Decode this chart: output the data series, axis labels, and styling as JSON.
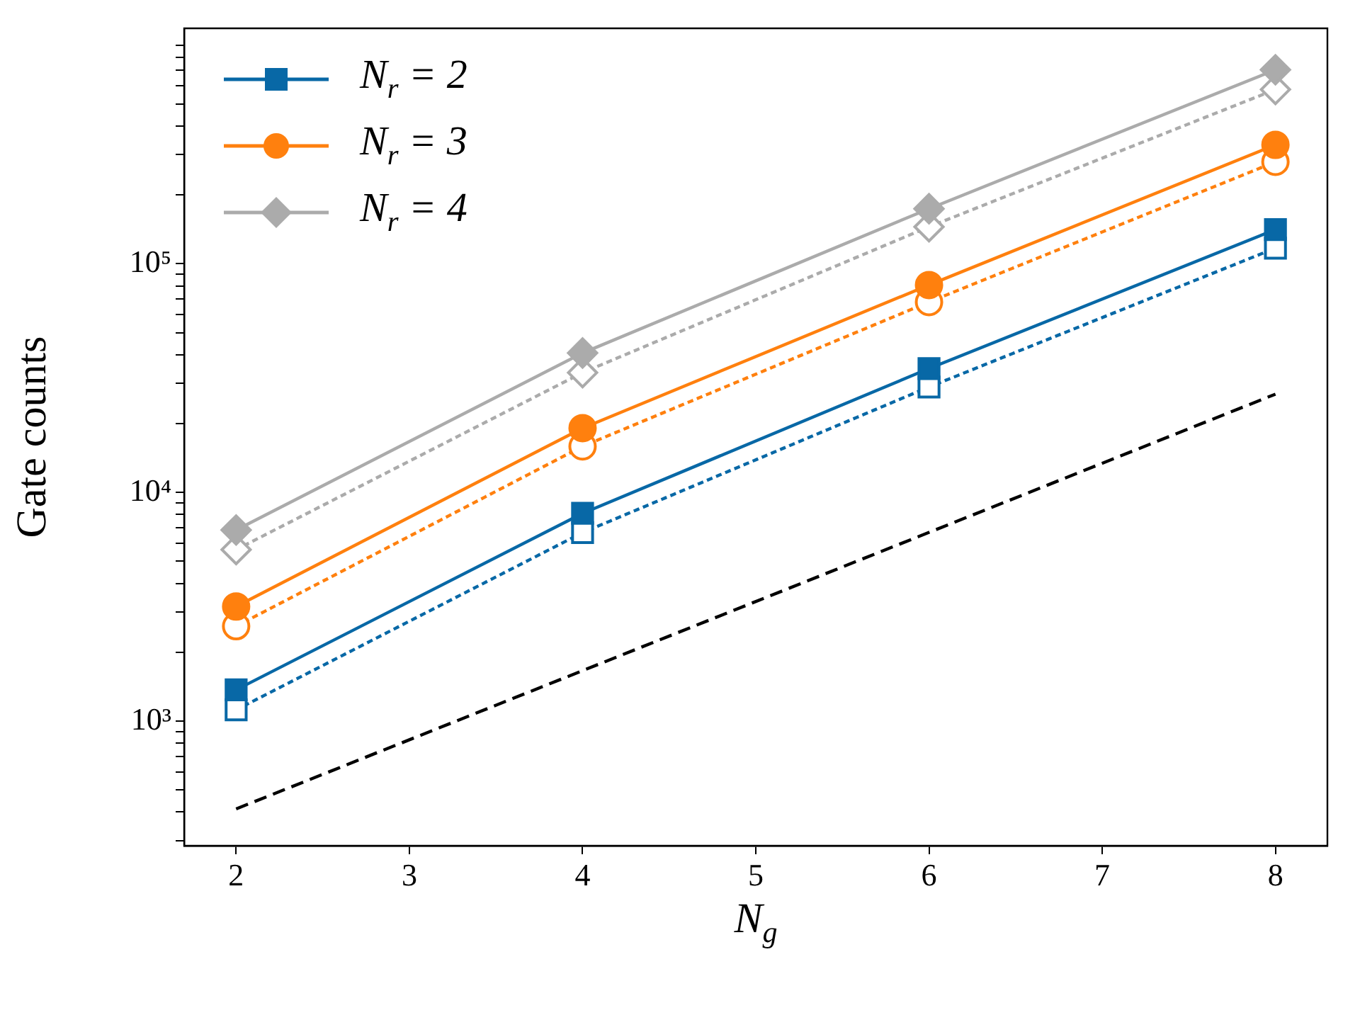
{
  "chart_data": {
    "type": "line",
    "xlabel": "N$_{g}$",
    "ylabel": "Gate counts",
    "log": "y",
    "grid": false,
    "legend": "top left",
    "xlim": [
      1.7,
      8.3
    ],
    "xticks": [
      2,
      3,
      4,
      5,
      6,
      7,
      8
    ],
    "ylim": [
      285,
      1070000
    ],
    "yticks": [
      {
        "value": 300,
        "label": null
      },
      {
        "value": 400,
        "label": null
      },
      {
        "value": 500,
        "label": null
      },
      {
        "value": 600,
        "label": null
      },
      {
        "value": 700,
        "label": null
      },
      {
        "value": 800,
        "label": null
      },
      {
        "value": 900,
        "label": null
      },
      {
        "value": 1000,
        "label": "10³"
      },
      {
        "value": 2000,
        "label": null
      },
      {
        "value": 3000,
        "label": null
      },
      {
        "value": 4000,
        "label": null
      },
      {
        "value": 5000,
        "label": null
      },
      {
        "value": 6000,
        "label": null
      },
      {
        "value": 7000,
        "label": null
      },
      {
        "value": 8000,
        "label": null
      },
      {
        "value": 9000,
        "label": null
      },
      {
        "value": 10000,
        "label": "10⁴"
      },
      {
        "value": 20000,
        "label": null
      },
      {
        "value": 30000,
        "label": null
      },
      {
        "value": 40000,
        "label": null
      },
      {
        "value": 50000,
        "label": null
      },
      {
        "value": 60000,
        "label": null
      },
      {
        "value": 70000,
        "label": null
      },
      {
        "value": 80000,
        "label": null
      },
      {
        "value": 90000,
        "label": null
      },
      {
        "value": 100000,
        "label": "10⁵"
      },
      {
        "value": 200000,
        "label": null
      },
      {
        "value": 300000,
        "label": null
      },
      {
        "value": 400000,
        "label": null
      },
      {
        "value": 500000,
        "label": null
      },
      {
        "value": 600000,
        "label": null
      },
      {
        "value": 700000,
        "label": null
      },
      {
        "value": 800000,
        "label": null
      },
      {
        "value": 900000,
        "label": null
      }
    ],
    "series": [
      {
        "name": "N$_{r}$ = 2",
        "color": "#0868a6",
        "marker": "square",
        "line_style": "solid",
        "x": [
          2,
          4,
          6,
          8
        ],
        "values": [
          1370,
          8100,
          34800,
          141000
        ]
      },
      {
        "name": "N$_{r}$ = 3",
        "color": "#ff800e",
        "marker": "circle",
        "line_style": "solid",
        "x": [
          2,
          4,
          6,
          8
        ],
        "values": [
          3170,
          19100,
          80700,
          331000
        ]
      },
      {
        "name": "N$_{r}$ = 4",
        "color": "#ababab",
        "marker": "diamond",
        "line_style": "solid",
        "x": [
          2,
          4,
          6,
          8
        ],
        "values": [
          6850,
          40700,
          174000,
          705000
        ]
      },
      {
        "color": "#0868a6",
        "marker": "square",
        "line_style": "dotted",
        "x": [
          2,
          4,
          6,
          8
        ],
        "values": [
          1120,
          6670,
          28900,
          117000
        ]
      },
      {
        "color": "#ff800e",
        "marker": "circle",
        "line_style": "dotted",
        "x": [
          2,
          4,
          6,
          8
        ],
        "values": [
          2600,
          15900,
          68000,
          279000
        ]
      },
      {
        "color": "#ababab",
        "marker": "diamond",
        "line_style": "dotted",
        "x": [
          2,
          4,
          6,
          8
        ],
        "values": [
          5620,
          33400,
          145000,
          578000
        ]
      },
      {
        "color": "#000000",
        "marker": "none",
        "line_style": "dashed",
        "x": [
          2,
          8
        ],
        "values": [
          413,
          26900
        ]
      }
    ]
  }
}
